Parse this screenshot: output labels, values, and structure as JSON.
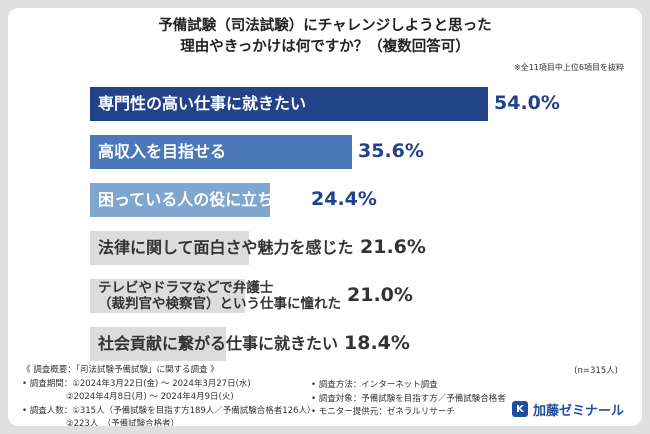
{
  "title_line1": "予備試験（司法試験）にチャレンジしようと思った",
  "title_line2": "理由やきっかけは何ですか？（複数回答可）",
  "note": "※全11項目中上位6項目を抜粋",
  "sample_note": "(n=315人)",
  "colors": {
    "bar1": "#22428a",
    "bar2": "#4a78b8",
    "bar3": "#7fa6cf",
    "bar_rest": "#dcdcdc",
    "value_blue": "#22428a",
    "value_gray": "#333333"
  },
  "chart_data": {
    "type": "bar",
    "orientation": "horizontal",
    "unit": "%",
    "xlim": [
      0,
      54
    ],
    "categories": [
      [
        "専門性の高い仕事に就きたい"
      ],
      [
        "高収入を目指せる"
      ],
      [
        "困っている人の役に立ちたい"
      ],
      [
        "法律に関して面白さや魅力を感じた"
      ],
      [
        "テレビやドラマなどで弁護士",
        "（裁判官や検察官）という仕事に憧れた"
      ],
      [
        "社会貢献に繋がる仕事に就きたい"
      ]
    ],
    "values": [
      54.0,
      35.6,
      24.4,
      21.6,
      21.0,
      18.4
    ],
    "value_labels": [
      "54.0%",
      "35.6%",
      "24.4%",
      "21.6%",
      "21.0%",
      "18.4%"
    ]
  },
  "survey": {
    "overview": "《 調査概要：「司法試験予備試験」に関する調査 》",
    "period_label": "• 調査期間：",
    "period_1": "①2024年3月22日(金) ～ 2024年3月27日(水)",
    "period_2": "②2024年4月8日(月) ～ 2024年4月9日(火)",
    "count_label": "• 調査人数：",
    "count_1": "①315人（予備試験を目指す方189人／予備試験合格者126人）",
    "count_2": "②223人　（予備試験合格者）",
    "method": "• 調査方法：インターネット調査",
    "target": "• 調査対象：予備試験を目指す方／予備試験合格者",
    "provider": "• モニター提供元：ゼネラルリサーチ"
  },
  "logo": {
    "mark": "K",
    "text": "加藤ゼミナール"
  }
}
